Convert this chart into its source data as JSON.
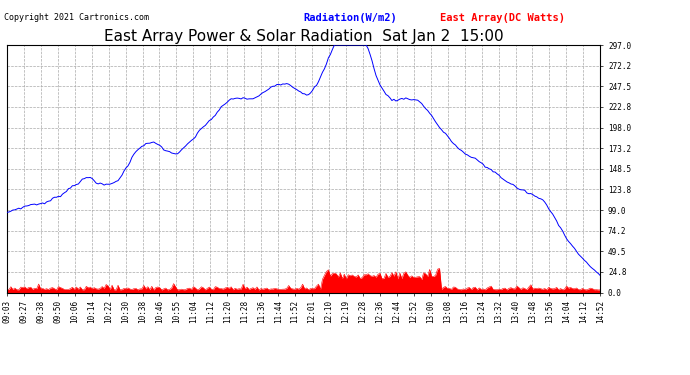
{
  "title": "East Array Power & Solar Radiation  Sat Jan 2  15:00",
  "copyright": "Copyright 2021 Cartronics.com",
  "legend_radiation": "Radiation(W/m2)",
  "legend_east_array": "East Array(DC Watts)",
  "radiation_color": "#0000ff",
  "east_array_color": "#ff0000",
  "yticks": [
    0.0,
    24.8,
    49.5,
    74.2,
    99.0,
    123.8,
    148.5,
    173.2,
    198.0,
    222.8,
    247.5,
    272.2,
    297.0
  ],
  "ymax": 297.0,
  "ymin": 0.0,
  "xtick_labels": [
    "09:03",
    "09:27",
    "09:38",
    "09:50",
    "10:06",
    "10:14",
    "10:22",
    "10:30",
    "10:38",
    "10:46",
    "10:55",
    "11:04",
    "11:12",
    "11:20",
    "11:28",
    "11:36",
    "11:44",
    "11:52",
    "12:01",
    "12:10",
    "12:19",
    "12:28",
    "12:36",
    "12:44",
    "12:52",
    "13:00",
    "13:08",
    "13:16",
    "13:24",
    "13:32",
    "13:40",
    "13:48",
    "13:56",
    "14:04",
    "14:12",
    "14:52"
  ],
  "background_color": "#ffffff",
  "grid_color": "#aaaaaa",
  "title_fontsize": 11,
  "tick_fontsize": 5.5,
  "legend_fontsize": 7.5
}
